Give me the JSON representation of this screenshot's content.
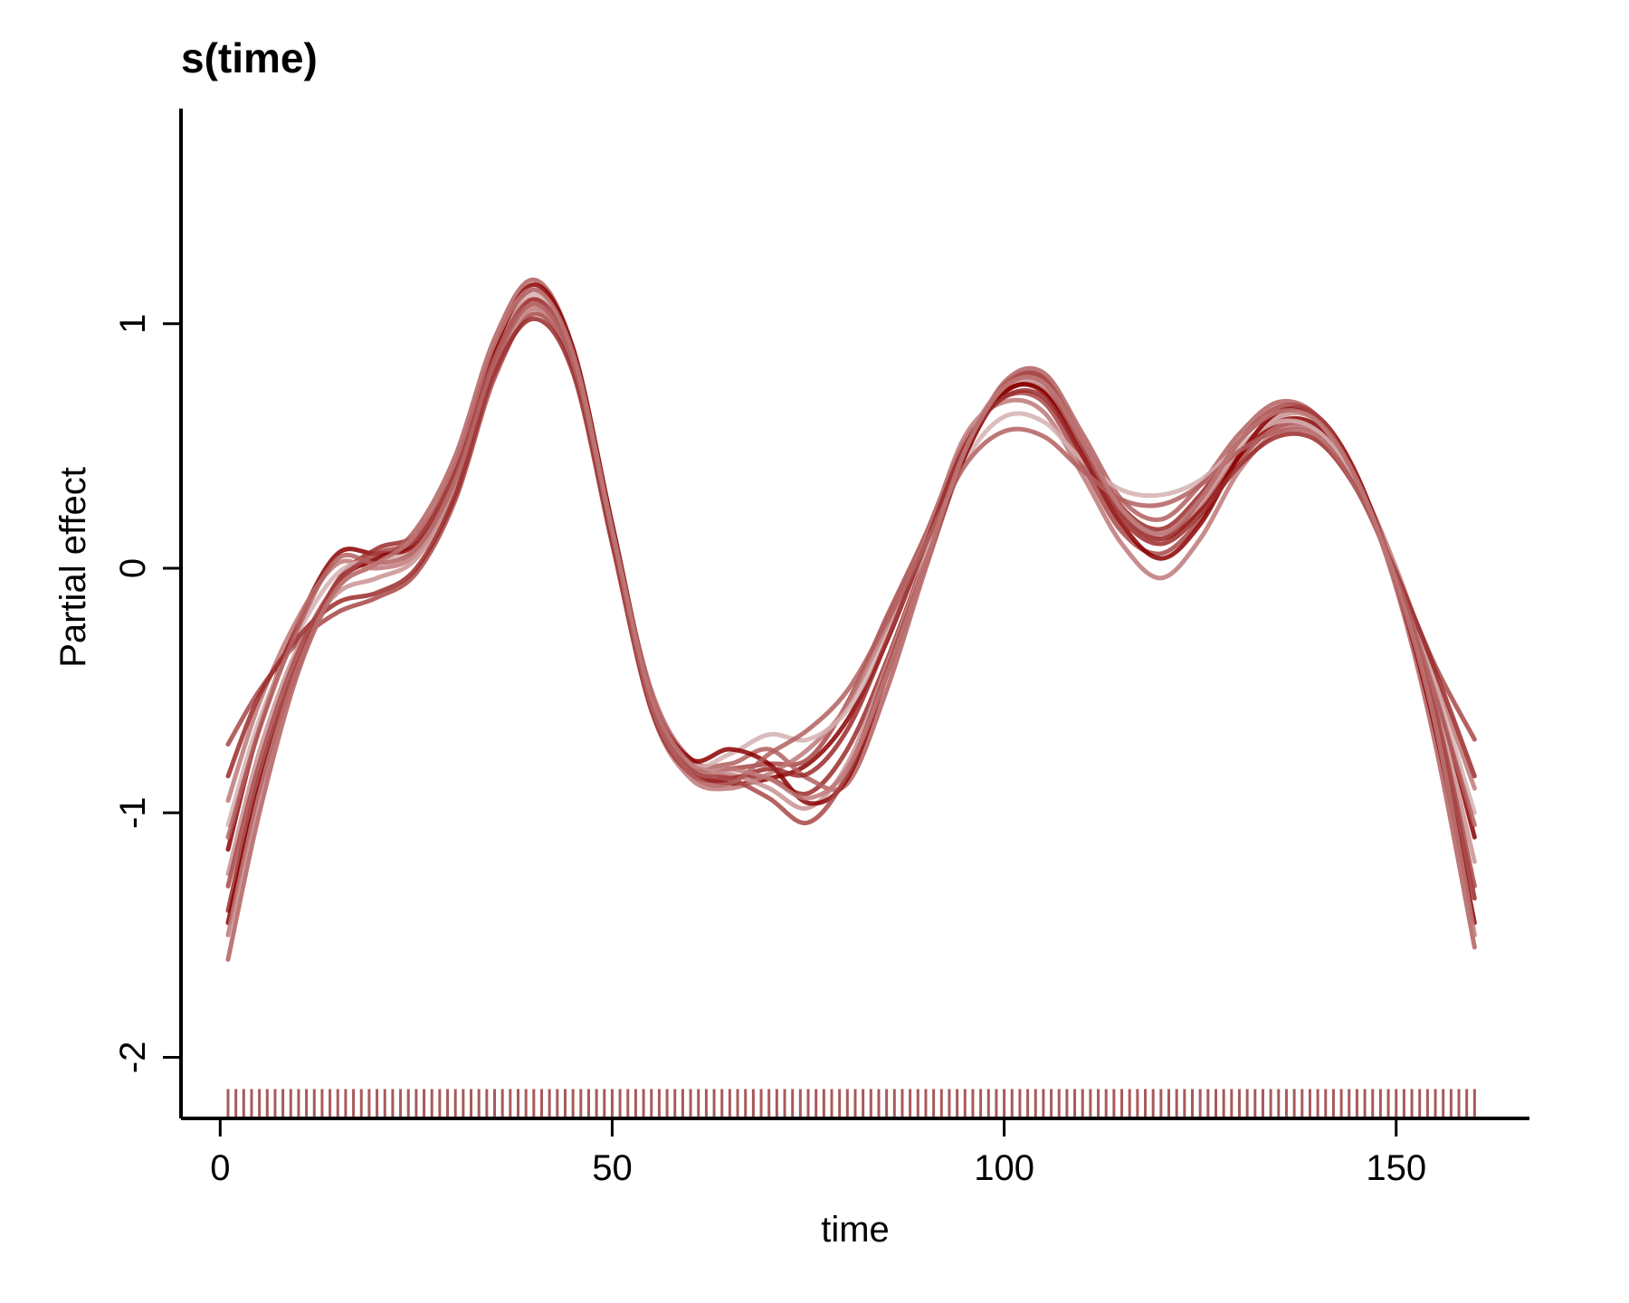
{
  "chart_data": {
    "type": "line",
    "title": "s(time)",
    "xlabel": "time",
    "ylabel": "Partial effect",
    "xlim": [
      -5,
      167
    ],
    "ylim": [
      -2.25,
      1.88
    ],
    "xticks": [
      0,
      50,
      100,
      150
    ],
    "yticks": [
      -2,
      -1,
      0,
      1
    ],
    "grid": false,
    "legend": "none",
    "rug": {
      "x_start": 1,
      "x_end": 160,
      "step": 1,
      "y_from": -2.25,
      "y_to": -2.13,
      "color": "#a85a5a"
    },
    "series_colors": [
      "#8b0000",
      "#9b2a2a",
      "#a84646",
      "#b35f5f",
      "#be7878",
      "#c99292",
      "#d5b0b0"
    ],
    "series": [
      {
        "x": [
          1,
          5,
          10,
          15,
          20,
          25,
          30,
          35,
          40,
          45,
          50,
          55,
          60,
          65,
          70,
          75,
          80,
          85,
          90,
          95,
          100,
          105,
          110,
          115,
          120,
          125,
          130,
          135,
          140,
          145,
          150,
          155,
          160
        ],
        "y": [
          -1.15,
          -0.65,
          -0.22,
          0.06,
          0.06,
          0.1,
          0.38,
          0.85,
          1.1,
          0.85,
          0.15,
          -0.55,
          -0.82,
          -0.88,
          -0.86,
          -0.8,
          -0.62,
          -0.3,
          0.1,
          0.5,
          0.72,
          0.73,
          0.48,
          0.22,
          0.12,
          0.24,
          0.46,
          0.6,
          0.58,
          0.36,
          -0.02,
          -0.5,
          -1.1
        ]
      },
      {
        "x": [
          1,
          5,
          10,
          15,
          20,
          25,
          30,
          35,
          40,
          45,
          50,
          55,
          60,
          65,
          70,
          75,
          80,
          85,
          90,
          95,
          100,
          105,
          110,
          115,
          120,
          125,
          130,
          135,
          140,
          145,
          150,
          155,
          160
        ],
        "y": [
          -1.4,
          -0.85,
          -0.38,
          -0.05,
          0.08,
          0.14,
          0.4,
          0.88,
          1.14,
          0.88,
          0.18,
          -0.52,
          -0.8,
          -0.85,
          -0.86,
          -0.92,
          -0.74,
          -0.38,
          0.05,
          0.48,
          0.75,
          0.78,
          0.52,
          0.25,
          0.16,
          0.3,
          0.52,
          0.64,
          0.6,
          0.34,
          -0.05,
          -0.6,
          -1.35
        ]
      },
      {
        "x": [
          1,
          5,
          10,
          15,
          20,
          25,
          30,
          35,
          40,
          45,
          50,
          55,
          60,
          65,
          70,
          75,
          80,
          85,
          90,
          95,
          100,
          105,
          110,
          115,
          120,
          125,
          130,
          135,
          140,
          145,
          150,
          155,
          160
        ],
        "y": [
          -0.72,
          -0.5,
          -0.3,
          -0.18,
          -0.12,
          -0.02,
          0.28,
          0.78,
          1.04,
          0.82,
          0.12,
          -0.56,
          -0.84,
          -0.82,
          -0.8,
          -0.78,
          -0.55,
          -0.2,
          0.14,
          0.52,
          0.7,
          0.68,
          0.42,
          0.15,
          0.06,
          0.2,
          0.44,
          0.58,
          0.56,
          0.34,
          -0.02,
          -0.4,
          -0.7
        ]
      },
      {
        "x": [
          1,
          5,
          10,
          15,
          20,
          25,
          30,
          35,
          40,
          45,
          50,
          55,
          60,
          65,
          70,
          75,
          80,
          85,
          90,
          95,
          100,
          105,
          110,
          115,
          120,
          125,
          130,
          135,
          140,
          145,
          150,
          155,
          160
        ],
        "y": [
          -1.6,
          -1.0,
          -0.42,
          -0.08,
          0.02,
          0.16,
          0.46,
          0.94,
          1.18,
          0.9,
          0.16,
          -0.5,
          -0.78,
          -0.8,
          -0.74,
          -0.86,
          -0.88,
          -0.5,
          0.0,
          0.46,
          0.76,
          0.8,
          0.55,
          0.28,
          0.2,
          0.34,
          0.55,
          0.68,
          0.62,
          0.36,
          -0.08,
          -0.72,
          -1.55
        ]
      },
      {
        "x": [
          1,
          5,
          10,
          15,
          20,
          25,
          30,
          35,
          40,
          45,
          50,
          55,
          60,
          65,
          70,
          75,
          80,
          85,
          90,
          95,
          100,
          105,
          110,
          115,
          120,
          125,
          130,
          135,
          140,
          145,
          150,
          155,
          160
        ],
        "y": [
          -0.95,
          -0.55,
          -0.2,
          0.02,
          0.0,
          0.06,
          0.34,
          0.82,
          1.06,
          0.84,
          0.14,
          -0.58,
          -0.86,
          -0.9,
          -0.84,
          -0.74,
          -0.56,
          -0.24,
          0.12,
          0.54,
          0.68,
          0.64,
          0.38,
          0.1,
          -0.04,
          0.12,
          0.4,
          0.56,
          0.56,
          0.36,
          0.0,
          -0.45,
          -0.9
        ]
      },
      {
        "x": [
          1,
          5,
          10,
          15,
          20,
          25,
          30,
          35,
          40,
          45,
          50,
          55,
          60,
          65,
          70,
          75,
          80,
          85,
          90,
          95,
          100,
          105,
          110,
          115,
          120,
          125,
          130,
          135,
          140,
          145,
          150,
          155,
          160
        ],
        "y": [
          -1.25,
          -0.75,
          -0.32,
          -0.1,
          -0.04,
          0.04,
          0.32,
          0.8,
          1.08,
          0.86,
          0.16,
          -0.54,
          -0.82,
          -0.84,
          -0.9,
          -0.98,
          -0.8,
          -0.4,
          0.04,
          0.5,
          0.74,
          0.74,
          0.5,
          0.24,
          0.14,
          0.26,
          0.48,
          0.62,
          0.6,
          0.35,
          -0.04,
          -0.55,
          -1.2
        ]
      },
      {
        "x": [
          1,
          5,
          10,
          15,
          20,
          25,
          30,
          35,
          40,
          45,
          50,
          55,
          60,
          65,
          70,
          75,
          80,
          85,
          90,
          95,
          100,
          105,
          110,
          115,
          120,
          125,
          130,
          135,
          140,
          145,
          150,
          155,
          160
        ],
        "y": [
          -1.05,
          -0.62,
          -0.26,
          -0.02,
          0.04,
          0.08,
          0.36,
          0.86,
          1.12,
          0.86,
          0.16,
          -0.54,
          -0.8,
          -0.76,
          -0.68,
          -0.7,
          -0.58,
          -0.28,
          0.08,
          0.44,
          0.62,
          0.6,
          0.44,
          0.32,
          0.3,
          0.36,
          0.5,
          0.6,
          0.56,
          0.34,
          -0.02,
          -0.48,
          -1.0
        ]
      },
      {
        "x": [
          1,
          5,
          10,
          15,
          20,
          25,
          30,
          35,
          40,
          45,
          50,
          55,
          60,
          65,
          70,
          75,
          80,
          85,
          90,
          95,
          100,
          105,
          110,
          115,
          120,
          125,
          130,
          135,
          140,
          145,
          150,
          155,
          160
        ],
        "y": [
          -1.45,
          -0.9,
          -0.4,
          -0.06,
          0.04,
          0.12,
          0.42,
          0.9,
          1.16,
          0.9,
          0.18,
          -0.52,
          -0.78,
          -0.74,
          -0.8,
          -0.96,
          -0.86,
          -0.44,
          0.02,
          0.46,
          0.72,
          0.72,
          0.46,
          0.18,
          0.04,
          0.18,
          0.46,
          0.64,
          0.62,
          0.38,
          -0.06,
          -0.66,
          -1.45
        ]
      },
      {
        "x": [
          1,
          5,
          10,
          15,
          20,
          25,
          30,
          35,
          40,
          45,
          50,
          55,
          60,
          65,
          70,
          75,
          80,
          85,
          90,
          95,
          100,
          105,
          110,
          115,
          120,
          125,
          130,
          135,
          140,
          145,
          150,
          155,
          160
        ],
        "y": [
          -0.85,
          -0.52,
          -0.28,
          -0.14,
          -0.1,
          0.0,
          0.3,
          0.8,
          1.02,
          0.8,
          0.1,
          -0.58,
          -0.84,
          -0.86,
          -0.82,
          -0.84,
          -0.66,
          -0.3,
          0.1,
          0.5,
          0.7,
          0.7,
          0.46,
          0.2,
          0.1,
          0.22,
          0.42,
          0.54,
          0.52,
          0.32,
          -0.02,
          -0.42,
          -0.85
        ]
      },
      {
        "x": [
          1,
          5,
          10,
          15,
          20,
          25,
          30,
          35,
          40,
          45,
          50,
          55,
          60,
          65,
          70,
          75,
          80,
          85,
          90,
          95,
          100,
          105,
          110,
          115,
          120,
          125,
          130,
          135,
          140,
          145,
          150,
          155,
          160
        ],
        "y": [
          -1.3,
          -0.8,
          -0.34,
          -0.06,
          0.06,
          0.12,
          0.4,
          0.86,
          1.1,
          0.86,
          0.16,
          -0.54,
          -0.82,
          -0.86,
          -0.94,
          -1.04,
          -0.84,
          -0.42,
          0.02,
          0.48,
          0.74,
          0.76,
          0.5,
          0.22,
          0.12,
          0.28,
          0.52,
          0.66,
          0.62,
          0.36,
          -0.04,
          -0.58,
          -1.3
        ]
      },
      {
        "x": [
          1,
          5,
          10,
          15,
          20,
          25,
          30,
          35,
          40,
          45,
          50,
          55,
          60,
          65,
          70,
          75,
          80,
          85,
          90,
          95,
          100,
          105,
          110,
          115,
          120,
          125,
          130,
          135,
          140,
          145,
          150,
          155,
          160
        ],
        "y": [
          -1.1,
          -0.66,
          -0.24,
          0.04,
          0.02,
          0.08,
          0.36,
          0.84,
          1.08,
          0.84,
          0.14,
          -0.56,
          -0.84,
          -0.88,
          -0.76,
          -0.66,
          -0.5,
          -0.22,
          0.1,
          0.42,
          0.56,
          0.54,
          0.4,
          0.28,
          0.26,
          0.34,
          0.48,
          0.56,
          0.54,
          0.32,
          -0.04,
          -0.52,
          -1.05
        ]
      },
      {
        "x": [
          1,
          5,
          10,
          15,
          20,
          25,
          30,
          35,
          40,
          45,
          50,
          55,
          60,
          65,
          70,
          75,
          80,
          85,
          90,
          95,
          100,
          105,
          110,
          115,
          120,
          125,
          130,
          135,
          140,
          145,
          150,
          155,
          160
        ],
        "y": [
          -1.5,
          -0.92,
          -0.4,
          -0.08,
          0.02,
          0.14,
          0.44,
          0.92,
          1.14,
          0.88,
          0.16,
          -0.52,
          -0.8,
          -0.82,
          -0.86,
          -0.94,
          -0.82,
          -0.44,
          0.02,
          0.48,
          0.74,
          0.76,
          0.52,
          0.24,
          0.14,
          0.28,
          0.52,
          0.64,
          0.6,
          0.36,
          -0.06,
          -0.64,
          -1.5
        ]
      }
    ]
  }
}
